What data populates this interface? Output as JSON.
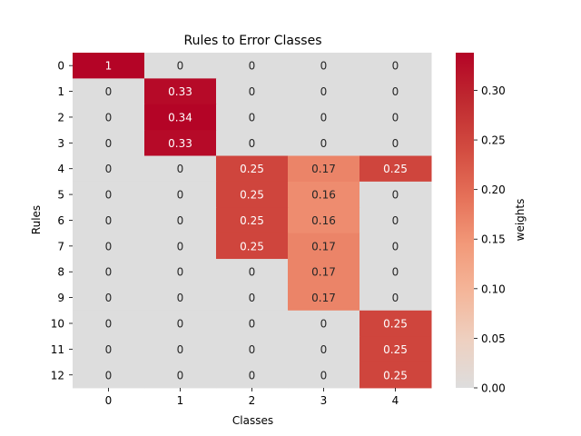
{
  "chart_data": {
    "type": "heatmap",
    "title": "Rules to Error Classes",
    "xlabel": "Classes",
    "ylabel": "Rules",
    "x_categories": [
      "0",
      "1",
      "2",
      "3",
      "4"
    ],
    "y_categories": [
      "0",
      "1",
      "2",
      "3",
      "4",
      "5",
      "6",
      "7",
      "8",
      "9",
      "10",
      "11",
      "12"
    ],
    "values": [
      [
        1,
        0,
        0,
        0,
        0
      ],
      [
        0,
        0.33,
        0,
        0,
        0
      ],
      [
        0,
        0.34,
        0,
        0,
        0
      ],
      [
        0,
        0.33,
        0,
        0,
        0
      ],
      [
        0,
        0,
        0.25,
        0.17,
        0.25
      ],
      [
        0,
        0,
        0.25,
        0.16,
        0
      ],
      [
        0,
        0,
        0.25,
        0.16,
        0
      ],
      [
        0,
        0,
        0.25,
        0.17,
        0
      ],
      [
        0,
        0,
        0,
        0.17,
        0
      ],
      [
        0,
        0,
        0,
        0.17,
        0
      ],
      [
        0,
        0,
        0,
        0,
        0.25
      ],
      [
        0,
        0,
        0,
        0,
        0.25
      ],
      [
        0,
        0,
        0,
        0,
        0.25
      ]
    ],
    "labels": [
      [
        "1",
        "0",
        "0",
        "0",
        "0"
      ],
      [
        "0",
        "0.33",
        "0",
        "0",
        "0"
      ],
      [
        "0",
        "0.34",
        "0",
        "0",
        "0"
      ],
      [
        "0",
        "0.33",
        "0",
        "0",
        "0"
      ],
      [
        "0",
        "0",
        "0.25",
        "0.17",
        "0.25"
      ],
      [
        "0",
        "0",
        "0.25",
        "0.16",
        "0"
      ],
      [
        "0",
        "0",
        "0.25",
        "0.16",
        "0"
      ],
      [
        "0",
        "0",
        "0.25",
        "0.17",
        "0"
      ],
      [
        "0",
        "0",
        "0",
        "0.17",
        "0"
      ],
      [
        "0",
        "0",
        "0",
        "0.17",
        "0"
      ],
      [
        "0",
        "0",
        "0",
        "0",
        "0.25"
      ],
      [
        "0",
        "0",
        "0",
        "0",
        "0.25"
      ],
      [
        "0",
        "0",
        "0",
        "0",
        "0.25"
      ]
    ],
    "colorbar": {
      "label": "weights",
      "vmin": 0,
      "vmax": 0.338,
      "ticks": [
        0,
        0.05,
        0.1,
        0.15,
        0.2,
        0.25,
        0.3
      ],
      "tick_labels": [
        "0.00",
        "0.05",
        "0.10",
        "0.15",
        "0.20",
        "0.25",
        "0.30"
      ],
      "colormap": "coolwarm (upper half)",
      "color_stops": [
        "#dddddd",
        "#eed0c0",
        "#f4b69a",
        "#f29979",
        "#e57058",
        "#d24b40",
        "#bf2a30",
        "#b40426"
      ]
    },
    "grid": false
  }
}
